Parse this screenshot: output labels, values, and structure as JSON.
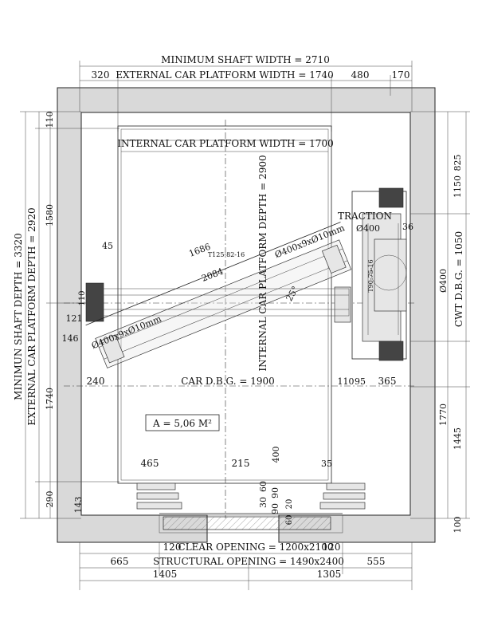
{
  "dimensions": {
    "min_shaft_width": "MINIMUM SHAFT WIDTH = 2710",
    "ext_car_platform_width": "EXTERNAL CAR PLATFORM WIDTH = 1740",
    "top_left": "320",
    "top_480": "480",
    "top_170": "170",
    "internal_car_platform_width": "INTERNAL CAR PLATFORM WIDTH = 1700",
    "min_shaft_depth": "MINIMUN SHAFT DEPTH = 3320",
    "ext_car_platform_depth": "EXTERNAL CAR PLATFORM DEPTH = 2920",
    "internal_car_platform_depth": "INTERNAL CAR PLATFORM DEPTH = 2900",
    "left_110": "110",
    "left_1580": "1580",
    "left_1740": "1740",
    "left_290": "290",
    "left_143": "143",
    "right_825": "825",
    "right_1150": "1150",
    "right_36": "36",
    "cwt_dbg": "CWT D.B.G. = 1050",
    "dia400_right": "Ø400",
    "right_1770": "1770",
    "right_1445": "1445",
    "right_100": "100",
    "d45": "45",
    "d1686": "1686",
    "d2084": "2084",
    "d110": "110",
    "d121": "121",
    "d146": "146",
    "rail_left": "T125-82-16",
    "rail_right": "T90-75-16",
    "pulley_left": "Ø400x9xØ10mm",
    "pulley_right": "Ø400x9xØ10mm",
    "angle": "25°",
    "traction": "TRACTION",
    "traction_dia": "Ø400",
    "dbg_240": "240",
    "car_dbg": "CAR D.B.G. = 1900",
    "dbg_110": "110",
    "dbg_95": "95",
    "dbg_365": "365",
    "area": "A = 5,06 M²",
    "b465": "465",
    "b215": "215",
    "b400": "400",
    "b35": "35",
    "b60": "60",
    "b30": "30",
    "b90a": "90",
    "b90b": "90",
    "b20": "20",
    "b60b": "60",
    "clear_left": "120",
    "clear_opening": "CLEAR OPENING = 1200x2100",
    "clear_right": "120",
    "structural_opening": "STRUCTURAL OPENING = 1490x2400",
    "bot_665": "665",
    "bot_555": "555",
    "bot_1405": "1405",
    "bot_1305": "1305"
  }
}
